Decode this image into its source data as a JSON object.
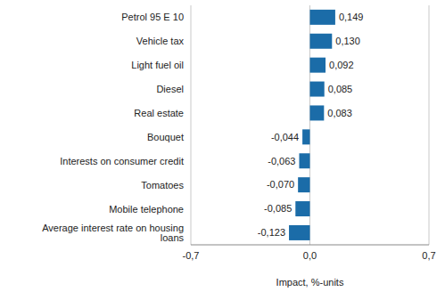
{
  "chart_data": {
    "type": "bar",
    "orientation": "horizontal",
    "categories": [
      "Petrol 95 E 10",
      "Vehicle tax",
      "Light fuel oil",
      "Diesel",
      "Real estate",
      "Bouquet",
      "Interests on consumer credit",
      "Tomatoes",
      "Mobile telephone",
      "Average interest rate on housing loans"
    ],
    "values": [
      0.149,
      0.13,
      0.092,
      0.085,
      0.083,
      -0.044,
      -0.063,
      -0.07,
      -0.085,
      -0.123
    ],
    "value_labels": [
      "0,149",
      "0,130",
      "0,092",
      "0,085",
      "0,083",
      "-0,044",
      "-0,063",
      "-0,070",
      "-0,085",
      "-0,123"
    ],
    "data_labels": true,
    "color": "#1b6ca8",
    "x_label": "Impact, %-units",
    "xlim": [
      -0.7,
      0.7
    ],
    "xticks": [
      {
        "value": -0.7,
        "label": "-0,7"
      },
      {
        "value": 0,
        "label": "0,0"
      },
      {
        "value": 0.7,
        "label": "0,7"
      }
    ],
    "grid": true
  }
}
